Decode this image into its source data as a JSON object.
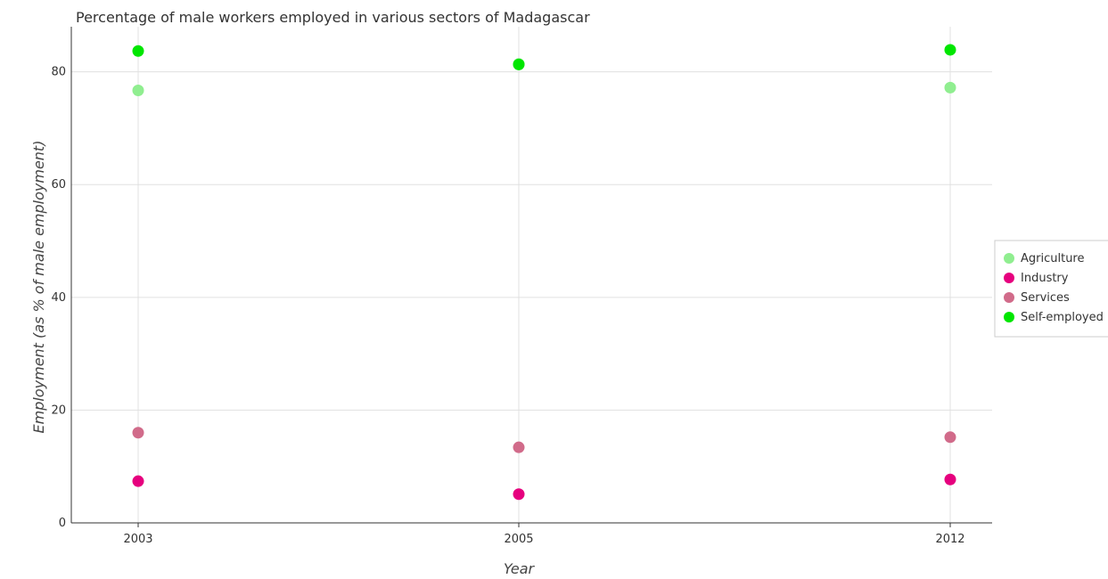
{
  "chart_data": {
    "type": "scatter",
    "title": "Percentage of male workers employed in various sectors of Madagascar",
    "xlabel": "Year",
    "ylabel": "Employment (as % of male employment)",
    "categories": [
      "2003",
      "2005",
      "2012"
    ],
    "ylim": [
      0,
      88
    ],
    "yticks": [
      "0",
      "20",
      "40",
      "60",
      "80"
    ],
    "grid": true,
    "legend_position": "right",
    "series": [
      {
        "name": "Agriculture",
        "color": "#90ee90",
        "values": [
          76.7,
          81.4,
          77.2
        ]
      },
      {
        "name": "Industry",
        "color": "#e6007e",
        "values": [
          7.4,
          5.1,
          7.7
        ]
      },
      {
        "name": "Services",
        "color": "#d16b8a",
        "values": [
          16.0,
          13.4,
          15.2
        ]
      },
      {
        "name": "Self-employed",
        "color": "#00e600",
        "values": [
          83.7,
          81.3,
          83.9
        ]
      }
    ]
  }
}
